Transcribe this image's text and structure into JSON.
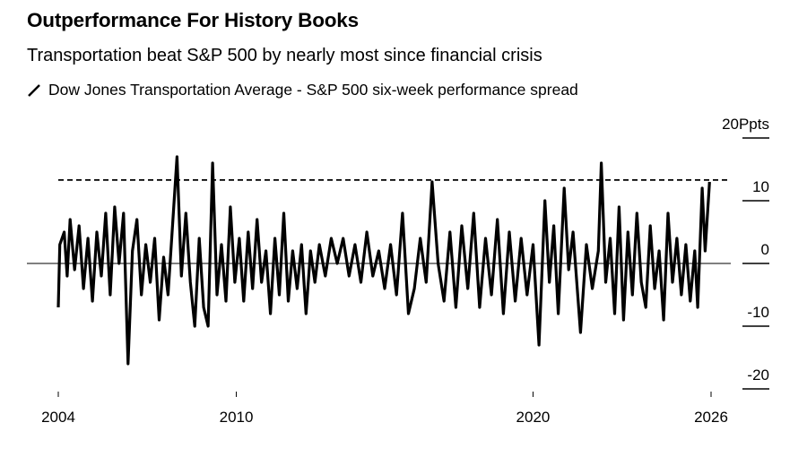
{
  "chart_data": {
    "type": "line",
    "title": "Outperformance For History Books",
    "subtitle": "Transportation beat S&P 500 by nearly most since financial crisis",
    "legend": [
      {
        "name": "Dow Jones Transportation Average - S&P 500 six-week performance spread",
        "icon": "line-slash-icon"
      }
    ],
    "yaxis": {
      "position": "right",
      "unit": "Ppts",
      "ticks": [
        20,
        10,
        0,
        -10,
        -20
      ],
      "tick_labels": [
        "20Ppts",
        "10",
        "0",
        "-10",
        "-20"
      ],
      "ylim": [
        -20,
        20
      ]
    },
    "xaxis": {
      "ticks": [
        2004,
        2010,
        2020,
        2026
      ],
      "tick_labels": [
        "2004",
        "2010",
        "2020",
        "2026"
      ],
      "xlim": [
        2004,
        2026
      ]
    },
    "reference_line": {
      "value": 13.3,
      "style": "dashed"
    },
    "zero_line": true,
    "line_color": "#000000",
    "series": [
      {
        "x": [
          2004.0,
          2004.05,
          2004.2,
          2004.3,
          2004.4,
          2004.55,
          2004.7,
          2004.85,
          2005.0,
          2005.15,
          2005.3,
          2005.45,
          2005.6,
          2005.75,
          2005.9,
          2006.05,
          2006.2,
          2006.35,
          2006.5,
          2006.65,
          2006.8,
          2006.95,
          2007.1,
          2007.25,
          2007.4,
          2007.55,
          2007.7,
          2007.85,
          2008.0,
          2008.15,
          2008.3,
          2008.45,
          2008.6,
          2008.75,
          2008.9,
          2009.05,
          2009.2,
          2009.35,
          2009.5,
          2009.65,
          2009.8,
          2009.95,
          2010.1,
          2010.25,
          2010.4,
          2010.55,
          2010.7,
          2010.85,
          2011.0,
          2011.15,
          2011.3,
          2011.45,
          2011.6,
          2011.75,
          2011.9,
          2012.05,
          2012.2,
          2012.35,
          2012.5,
          2012.65,
          2012.8,
          2013.0,
          2013.2,
          2013.4,
          2013.6,
          2013.8,
          2014.0,
          2014.2,
          2014.4,
          2014.6,
          2014.8,
          2015.0,
          2015.2,
          2015.4,
          2015.6,
          2015.8,
          2016.0,
          2016.2,
          2016.4,
          2016.6,
          2016.8,
          2017.0,
          2017.2,
          2017.4,
          2017.6,
          2017.8,
          2018.0,
          2018.2,
          2018.4,
          2018.6,
          2018.8,
          2019.0,
          2019.2,
          2019.4,
          2019.6,
          2019.8,
          2020.0,
          2020.2,
          2020.4,
          2020.55,
          2020.7,
          2020.85,
          2021.05,
          2021.2,
          2021.35,
          2021.6,
          2021.8,
          2022.0,
          2022.2,
          2022.3,
          2022.45,
          2022.6,
          2022.75,
          2022.9,
          2023.05,
          2023.2,
          2023.35,
          2023.5,
          2023.65,
          2023.8,
          2023.95,
          2024.1,
          2024.25,
          2024.4,
          2024.55,
          2024.7,
          2024.85,
          2025.0,
          2025.15,
          2025.3,
          2025.45,
          2025.55,
          2025.7,
          2025.8,
          2025.95
        ],
        "y": [
          -7,
          3,
          5,
          -2,
          7,
          -1,
          6,
          -4,
          4,
          -6,
          5,
          -2,
          8,
          -5,
          9,
          0,
          8,
          -16,
          2,
          7,
          -5,
          3,
          -3,
          4,
          -9,
          1,
          -5,
          6,
          17,
          -2,
          8,
          -3,
          -10,
          4,
          -7,
          -10,
          16,
          -5,
          3,
          -6,
          9,
          -3,
          4,
          -6,
          5,
          -4,
          7,
          -3,
          2,
          -8,
          4,
          -5,
          8,
          -6,
          2,
          -4,
          3,
          -8,
          2,
          -3,
          3,
          -2,
          4,
          0,
          4,
          -2,
          3,
          -3,
          5,
          -2,
          2,
          -4,
          3,
          -5,
          8,
          -8,
          -4,
          4,
          -3,
          13,
          0,
          -6,
          5,
          -7,
          6,
          -4,
          8,
          -7,
          4,
          -5,
          7,
          -8,
          5,
          -6,
          4,
          -5,
          3,
          -13,
          10,
          -3,
          6,
          -8,
          12,
          -1,
          5,
          -11,
          3,
          -4,
          2,
          16,
          -3,
          4,
          -8,
          9,
          -9,
          5,
          -5,
          8,
          -3,
          -7,
          6,
          -4,
          2,
          -9,
          8,
          -3,
          4,
          -5,
          3,
          -6,
          2,
          -7,
          12,
          2,
          13
        ]
      }
    ]
  }
}
